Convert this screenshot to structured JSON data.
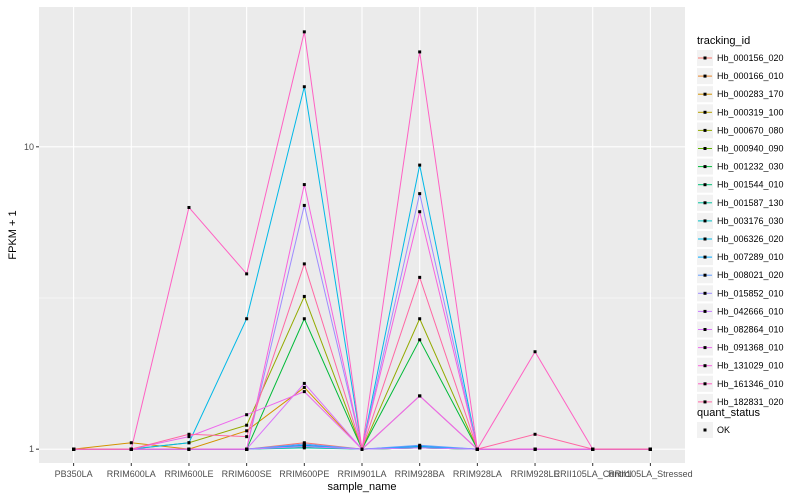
{
  "chart_data": {
    "type": "line",
    "xlabel": "sample_name",
    "ylabel": "FPKM + 1",
    "y_scale": "log10",
    "ylim": [
      0.9,
      29
    ],
    "y_ticks": [
      1,
      10
    ],
    "y_tick_labels": [
      "1",
      "10"
    ],
    "grid": true,
    "categories": [
      "PB350LA",
      "RRIM600LA",
      "RRIM600LE",
      "RRIM600SE",
      "RRIM600PE",
      "RRIM901LA",
      "RRIM928BA",
      "RRIM928LA",
      "RRIM928LE",
      "RRII105LA_Control",
      "RRII105LA_Stressed"
    ],
    "legend": {
      "position": "right",
      "title": "tracking_id",
      "status_title": "quant_status",
      "status_entries": [
        "OK"
      ]
    },
    "series": [
      {
        "name": "Hb_000156_020",
        "color": "#F8766D",
        "values": [
          1,
          1,
          1,
          1,
          1.05,
          1,
          1.02,
          1,
          1,
          1,
          1
        ]
      },
      {
        "name": "Hb_000166_010",
        "color": "#E88526",
        "values": [
          1,
          1,
          1,
          1,
          1.03,
          1,
          1.02,
          1,
          1,
          1,
          1
        ]
      },
      {
        "name": "Hb_000283_170",
        "color": "#D39200",
        "values": [
          1,
          1.05,
          1,
          1.15,
          1.6,
          1,
          1.5,
          1,
          1,
          1,
          1
        ]
      },
      {
        "name": "Hb_000319_100",
        "color": "#B79F00",
        "values": [
          1,
          1,
          1,
          1,
          1.02,
          1,
          1.01,
          1,
          1,
          1,
          1
        ]
      },
      {
        "name": "Hb_000670_080",
        "color": "#93AA00",
        "values": [
          1,
          1,
          1.05,
          1.2,
          3.2,
          1,
          2.7,
          1,
          1,
          1,
          1
        ]
      },
      {
        "name": "Hb_000940_090",
        "color": "#5EB300",
        "values": [
          1,
          1,
          1,
          1,
          1.02,
          1,
          1.01,
          1,
          1,
          1,
          1
        ]
      },
      {
        "name": "Hb_001232_030",
        "color": "#00BA38",
        "values": [
          1,
          1,
          1,
          1,
          2.7,
          1,
          2.3,
          1,
          1,
          1,
          1
        ]
      },
      {
        "name": "Hb_001544_010",
        "color": "#00BF74",
        "values": [
          1,
          1,
          1,
          1,
          1.02,
          1,
          1.01,
          1,
          1,
          1,
          1
        ]
      },
      {
        "name": "Hb_001587_130",
        "color": "#00C19F",
        "values": [
          1,
          1,
          1,
          1,
          1.01,
          1,
          1.01,
          1,
          1,
          1,
          1
        ]
      },
      {
        "name": "Hb_003176_030",
        "color": "#00BFC4",
        "values": [
          1,
          1,
          1,
          1,
          1.02,
          1,
          1.02,
          1,
          1,
          1,
          1
        ]
      },
      {
        "name": "Hb_006326_020",
        "color": "#00B8E7",
        "values": [
          1,
          1,
          1.05,
          2.7,
          15.8,
          1,
          8.7,
          1,
          1,
          1,
          1
        ]
      },
      {
        "name": "Hb_007289_010",
        "color": "#00A9FF",
        "values": [
          1,
          1,
          1,
          1,
          1.03,
          1,
          1.02,
          1,
          1,
          1,
          1
        ]
      },
      {
        "name": "Hb_008021_020",
        "color": "#619CFF",
        "values": [
          1,
          1,
          1,
          1,
          1.04,
          1,
          1.03,
          1,
          1,
          1,
          1
        ]
      },
      {
        "name": "Hb_015852_010",
        "color": "#9E8CFF",
        "values": [
          1,
          1,
          1,
          1,
          6.4,
          1,
          7.0,
          1,
          1,
          1,
          1
        ]
      },
      {
        "name": "Hb_042666_010",
        "color": "#C77CFF",
        "values": [
          1,
          1,
          1,
          1,
          1.02,
          1,
          1.01,
          1,
          1,
          1,
          1
        ]
      },
      {
        "name": "Hb_082864_010",
        "color": "#DB72FB",
        "values": [
          1,
          1,
          1,
          1,
          1.65,
          1,
          1.5,
          1,
          1,
          1,
          1
        ]
      },
      {
        "name": "Hb_091368_010",
        "color": "#ED68ED",
        "values": [
          1,
          1,
          1.1,
          1.3,
          1.55,
          1,
          1.5,
          1,
          1,
          1,
          1
        ]
      },
      {
        "name": "Hb_131029_010",
        "color": "#F962DD",
        "values": [
          1,
          1,
          1,
          1,
          7.5,
          1,
          6.1,
          1,
          1,
          1,
          1
        ]
      },
      {
        "name": "Hb_161346_010",
        "color": "#FF61C3",
        "values": [
          1,
          1,
          6.3,
          3.8,
          24.0,
          1,
          20.6,
          1,
          2.1,
          1,
          1
        ]
      },
      {
        "name": "Hb_182831_020",
        "color": "#FF67A4",
        "values": [
          1,
          1,
          1.12,
          1.1,
          4.1,
          1,
          3.7,
          1,
          1.12,
          1,
          1
        ]
      }
    ]
  }
}
